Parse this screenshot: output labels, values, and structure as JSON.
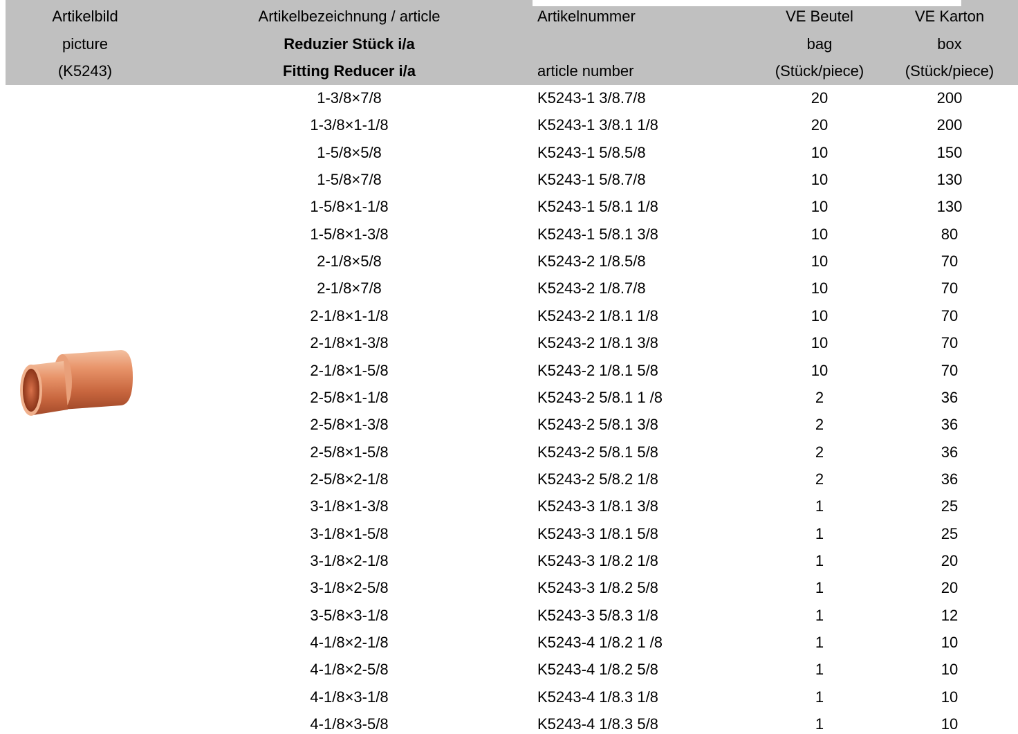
{
  "header": {
    "columns": [
      {
        "lines": [
          "Artikelbild",
          "picture",
          "(K5243)"
        ]
      },
      {
        "lines": [
          "Artikelbezeichnung / article",
          "Reduzier Stück i/a",
          "Fitting Reducer i/a"
        ]
      },
      {
        "lines": [
          "Artikelnummer",
          "article number"
        ]
      },
      {
        "lines": [
          "VE Beutel",
          "bag",
          "(Stück/piece)"
        ]
      },
      {
        "lines": [
          "VE Karton",
          "box",
          "(Stück/piece)"
        ]
      }
    ]
  },
  "table": {
    "rows": [
      [
        "1-3/8×7/8",
        "K5243-1 3/8.7/8",
        20,
        200
      ],
      [
        "1-3/8×1-1/8",
        "K5243-1 3/8.1 1/8",
        20,
        200
      ],
      [
        "1-5/8×5/8",
        "K5243-1 5/8.5/8",
        10,
        150
      ],
      [
        "1-5/8×7/8",
        "K5243-1 5/8.7/8",
        10,
        130
      ],
      [
        "1-5/8×1-1/8",
        "K5243-1 5/8.1 1/8",
        10,
        130
      ],
      [
        "1-5/8×1-3/8",
        "K5243-1 5/8.1 3/8",
        10,
        80
      ],
      [
        "2-1/8×5/8",
        "K5243-2 1/8.5/8",
        10,
        70
      ],
      [
        "2-1/8×7/8",
        "K5243-2 1/8.7/8",
        10,
        70
      ],
      [
        "2-1/8×1-1/8",
        "K5243-2 1/8.1 1/8",
        10,
        70
      ],
      [
        "2-1/8×1-3/8",
        "K5243-2 1/8.1 3/8",
        10,
        70
      ],
      [
        "2-1/8×1-5/8",
        "K5243-2 1/8.1 5/8",
        10,
        70
      ],
      [
        "2-5/8×1-1/8",
        "K5243-2 5/8.1 1 /8",
        2,
        36
      ],
      [
        "2-5/8×1-3/8",
        "K5243-2 5/8.1 3/8",
        2,
        36
      ],
      [
        "2-5/8×1-5/8",
        "K5243-2 5/8.1 5/8",
        2,
        36
      ],
      [
        "2-5/8×2-1/8",
        "K5243-2 5/8.2 1/8",
        2,
        36
      ],
      [
        "3-1/8×1-3/8",
        "K5243-3 1/8.1 3/8",
        1,
        25
      ],
      [
        "3-1/8×1-5/8",
        "K5243-3 1/8.1 5/8",
        1,
        25
      ],
      [
        "3-1/8×2-1/8",
        "K5243-3 1/8.2 1/8",
        1,
        20
      ],
      [
        "3-1/8×2-5/8",
        "K5243-3 1/8.2 5/8",
        1,
        20
      ],
      [
        "3-5/8×3-1/8",
        "K5243-3 5/8.3 1/8",
        1,
        12
      ],
      [
        "4-1/8×2-1/8",
        "K5243-4 1/8.2 1 /8",
        1,
        10
      ],
      [
        "4-1/8×2-5/8",
        "K5243-4 1/8.2 5/8",
        1,
        10
      ],
      [
        "4-1/8×3-1/8",
        "K5243-4 1/8.3 1/8",
        1,
        10
      ],
      [
        "4-1/8×3-5/8",
        "K5243-4 1/8.3 5/8",
        1,
        10
      ]
    ]
  }
}
